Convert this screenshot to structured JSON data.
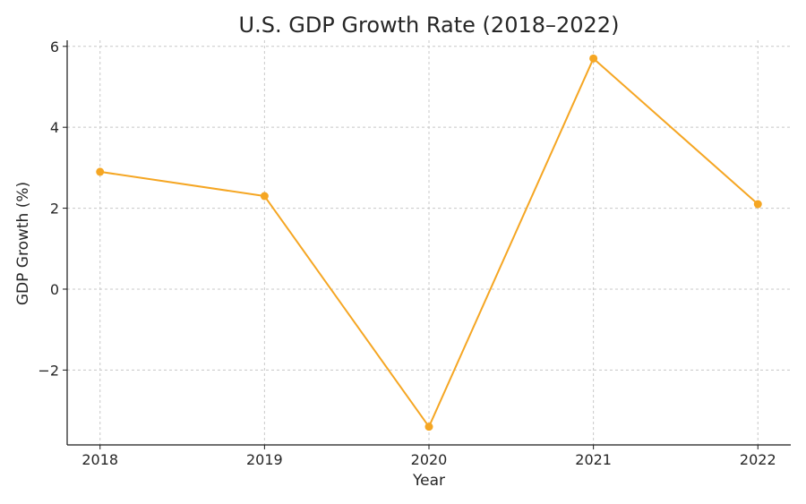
{
  "chart_data": {
    "type": "line",
    "title": "U.S. GDP Growth Rate (2018–2022)",
    "xlabel": "Year",
    "ylabel": "GDP Growth (%)",
    "x": [
      2018,
      2019,
      2020,
      2021,
      2022
    ],
    "series": [
      {
        "values": [
          2.9,
          2.3,
          -3.4,
          5.7,
          2.1
        ],
        "color": "#f5a623"
      }
    ],
    "x_ticks": [
      "2018",
      "2019",
      "2020",
      "2021",
      "2022"
    ],
    "y_ticks": [
      {
        "value": -2,
        "label": "−2"
      },
      {
        "value": 0,
        "label": "0"
      },
      {
        "value": 2,
        "label": "2"
      },
      {
        "value": 4,
        "label": "4"
      },
      {
        "value": 6,
        "label": "6"
      }
    ],
    "xlim": [
      2017.8,
      2022.2
    ],
    "ylim": [
      -3.85,
      6.15
    ],
    "grid": true,
    "legend": "none",
    "marker": "circle"
  }
}
